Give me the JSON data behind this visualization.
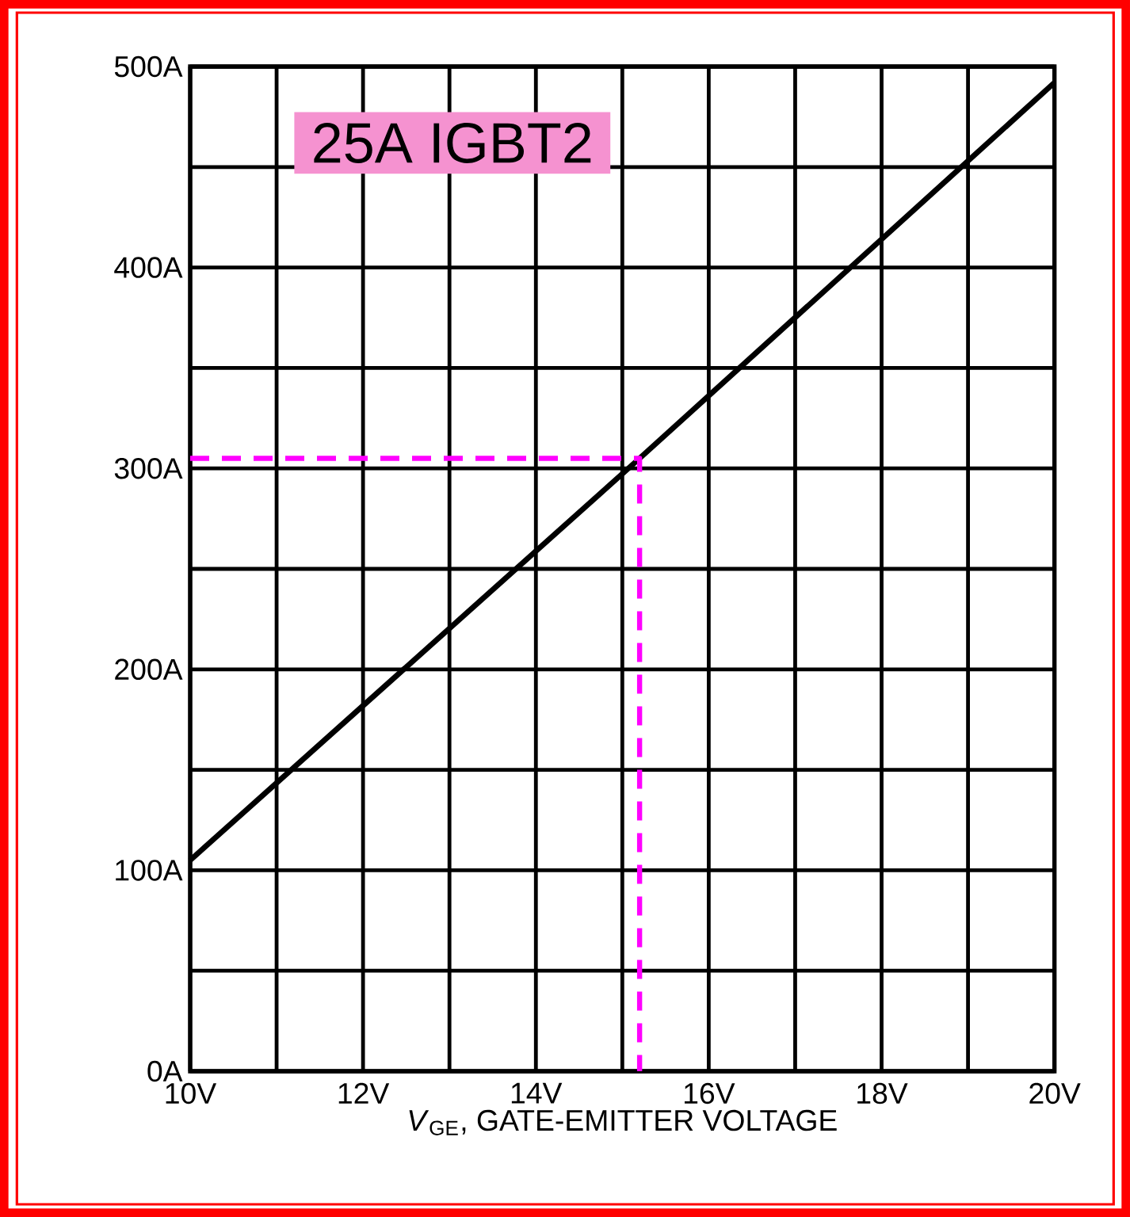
{
  "chart_data": {
    "type": "line",
    "xlabel": "*V*$_{GE}$, GATE-EMITTER VOLTAGE",
    "annotations": [
      "25A IGBT2"
    ],
    "series": [
      {
        "color": "#000000",
        "x": [
          10,
          15.2,
          20
        ],
        "values": [
          105,
          305,
          492
        ],
        "line_style": "solid"
      },
      {
        "type": "line",
        "color": "#ff00ff",
        "x": [
          10,
          15.2,
          15.2
        ],
        "values": [
          305,
          305,
          0
        ],
        "line_style": "dashed"
      }
    ],
    "xlim": [
      10,
      20
    ],
    "xticks": [
      {
        "value": 10,
        "label": "10V"
      },
      {
        "value": 11,
        "label": null
      },
      {
        "value": 12,
        "label": "12V"
      },
      {
        "value": 13,
        "label": null
      },
      {
        "value": 14,
        "label": "14V"
      },
      {
        "value": 15,
        "label": null
      },
      {
        "value": 16,
        "label": "16V"
      },
      {
        "value": 17,
        "label": null
      },
      {
        "value": 18,
        "label": "18V"
      },
      {
        "value": 19,
        "label": null
      },
      {
        "value": 20,
        "label": "20V"
      }
    ],
    "ylim": [
      0,
      500
    ],
    "yticks": [
      {
        "value": 0,
        "label": "0A"
      },
      {
        "value": 50,
        "label": null
      },
      {
        "value": 100,
        "label": "100A"
      },
      {
        "value": 150,
        "label": null
      },
      {
        "value": 200,
        "label": "200A"
      },
      {
        "value": 250,
        "label": null
      },
      {
        "value": 300,
        "label": "300A"
      },
      {
        "value": 350,
        "label": null
      },
      {
        "value": 400,
        "label": "400A"
      },
      {
        "value": 450,
        "label": null
      },
      {
        "value": 500,
        "label": "500A"
      }
    ],
    "grid": true,
    "marker": "none"
  }
}
